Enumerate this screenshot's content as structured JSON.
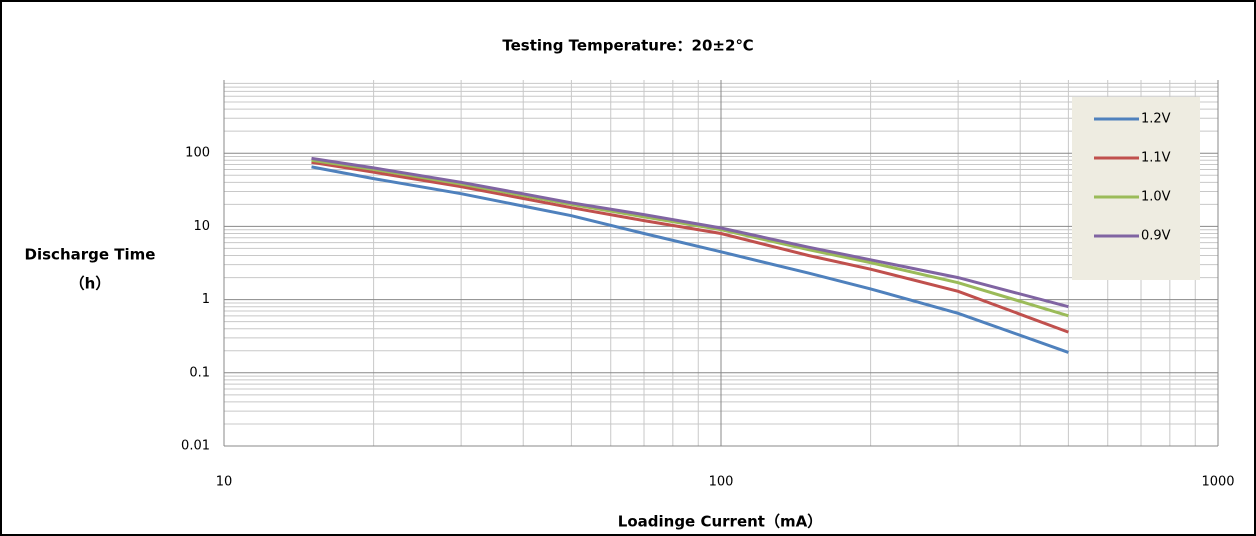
{
  "chart_data": {
    "type": "line",
    "title": "Testing Temperature：20±2℃",
    "xlabel": "Loadinge Current（mA）",
    "ylabel": [
      "Discharge Time",
      "（h）"
    ],
    "x": [
      15,
      20,
      30,
      50,
      70,
      100,
      150,
      200,
      300,
      500
    ],
    "series": [
      {
        "name": "1.2V",
        "color": "#4f81bd",
        "values": [
          65,
          45,
          28,
          14,
          8,
          4.5,
          2.3,
          1.4,
          0.65,
          0.19
        ]
      },
      {
        "name": "1.1V",
        "color": "#c0504d",
        "values": [
          75,
          55,
          35,
          18,
          12,
          8,
          4,
          2.6,
          1.3,
          0.36
        ]
      },
      {
        "name": "1.0V",
        "color": "#9bbb59",
        "values": [
          80,
          60,
          38,
          20,
          13.5,
          9,
          4.8,
          3.2,
          1.7,
          0.6
        ]
      },
      {
        "name": "0.9V",
        "color": "#8064a2",
        "values": [
          85,
          63,
          40,
          21,
          14.5,
          9.5,
          5.2,
          3.5,
          2.0,
          0.8
        ]
      }
    ],
    "xlim": [
      10,
      1000
    ],
    "xticks": [
      10,
      100,
      1000
    ],
    "ylim": [
      0.01,
      1000
    ],
    "yticks": [
      0.01,
      0.1,
      1,
      10,
      100
    ],
    "xlog": true,
    "ylog": true,
    "grid": true,
    "legend": "upper right"
  }
}
